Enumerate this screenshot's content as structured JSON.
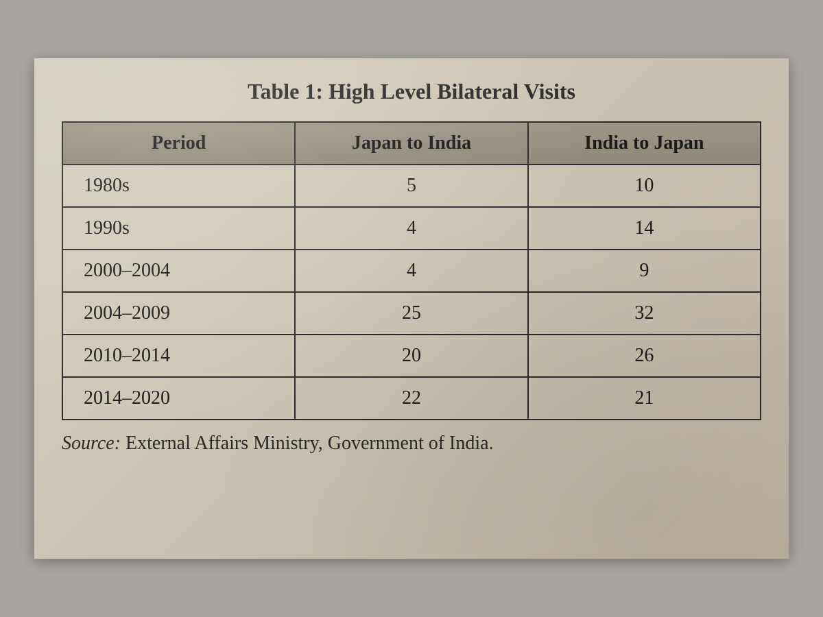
{
  "table": {
    "type": "table",
    "title": "Table 1: High Level Bilateral Visits",
    "title_fontsize": 32,
    "columns": [
      "Period",
      "Japan to India",
      "India to Japan"
    ],
    "column_widths": [
      "33%",
      "33%",
      "33%"
    ],
    "column_alignments": [
      "left",
      "center",
      "center"
    ],
    "rows": [
      [
        "1980s",
        "5",
        "10"
      ],
      [
        "1990s",
        "4",
        "14"
      ],
      [
        "2000–2004",
        "4",
        "9"
      ],
      [
        "2004–2009",
        "25",
        "32"
      ],
      [
        "2010–2014",
        "20",
        "26"
      ],
      [
        "2014–2020",
        "22",
        "21"
      ]
    ],
    "header_bg_color": "#8f8879",
    "border_color": "#2a2a2a",
    "border_width": 2,
    "cell_fontsize": 28,
    "text_color": "#1a1a1a",
    "paper_bg_color": "#cfc8b8",
    "outer_bg_color": "#a8a5a0"
  },
  "source": {
    "label": "Source:",
    "text": " External Affairs Ministry, Government of India.",
    "fontsize": 28
  }
}
